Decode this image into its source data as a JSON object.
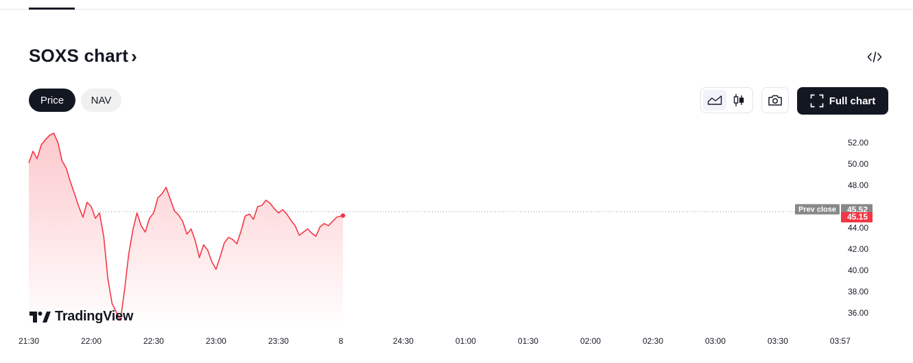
{
  "header": {
    "title": "SOXS chart",
    "title_chevron": "›"
  },
  "tabs": [
    {
      "label": "Price",
      "active": true
    },
    {
      "label": "NAV",
      "active": false
    }
  ],
  "toolbar": {
    "full_chart_label": "Full chart",
    "embed_icon": "code-embed-icon",
    "area_icon": "area-chart-icon",
    "candle_icon": "candlestick-icon",
    "camera_icon": "camera-icon",
    "fullscreen_icon": "fullscreen-icon"
  },
  "logo": {
    "text": "TradingView"
  },
  "colors": {
    "line": "#f23645",
    "area_top": "#fcc9cd",
    "area_bottom": "#ffffff",
    "prev_close_bg": "#888888",
    "price_badge_bg": "#f23645",
    "dark": "#131722"
  },
  "chart_data": {
    "type": "area",
    "title": "",
    "xlabel": "",
    "ylabel": "",
    "y_ticks": [
      "52.00",
      "50.00",
      "48.00",
      "44.00",
      "42.00",
      "40.00",
      "38.00",
      "36.00"
    ],
    "x_ticks": [
      "21:30",
      "22:00",
      "22:30",
      "23:00",
      "23:30",
      "8",
      "24:30",
      "01:00",
      "01:30",
      "02:00",
      "02:30",
      "03:00",
      "03:30",
      "03:57"
    ],
    "ylim": [
      35.0,
      53.1
    ],
    "prev_close": {
      "label": "Prev close",
      "value": "45.52"
    },
    "last_price": "45.15",
    "series": [
      {
        "x": [
          "21:30",
          "21:32",
          "21:34",
          "21:36",
          "21:38",
          "21:40",
          "21:42",
          "21:44",
          "21:46",
          "21:48",
          "21:50",
          "21:52",
          "21:54",
          "21:56",
          "21:58",
          "22:00",
          "22:02",
          "22:04",
          "22:06",
          "22:08",
          "22:10",
          "22:12",
          "22:14",
          "22:16",
          "22:18",
          "22:20",
          "22:22",
          "22:24",
          "22:26",
          "22:28",
          "22:30",
          "22:32",
          "22:34",
          "22:36",
          "22:38",
          "22:40",
          "22:42",
          "22:44",
          "22:46",
          "22:48",
          "22:50",
          "22:52",
          "22:54",
          "22:56",
          "22:58",
          "23:00",
          "23:02",
          "23:04",
          "23:06",
          "23:08",
          "23:10",
          "23:12",
          "23:14",
          "23:16",
          "23:18",
          "23:20",
          "23:22",
          "23:24",
          "23:26",
          "23:28",
          "23:30",
          "23:32",
          "23:34",
          "23:36",
          "23:38",
          "23:40",
          "23:42",
          "23:44",
          "23:46",
          "23:48",
          "23:50",
          "23:52",
          "23:54",
          "23:56",
          "23:58",
          "24:00",
          "24:01"
        ],
        "values": [
          50.1,
          51.2,
          50.5,
          51.8,
          52.3,
          52.7,
          52.9,
          52.0,
          50.3,
          49.6,
          48.3,
          47.2,
          46.0,
          45.0,
          46.4,
          46.0,
          44.9,
          45.4,
          43.2,
          39.2,
          36.9,
          36.1,
          35.3,
          38.1,
          41.5,
          43.8,
          45.4,
          44.2,
          43.6,
          44.9,
          45.4,
          46.8,
          47.2,
          47.8,
          46.7,
          45.6,
          45.2,
          44.6,
          43.4,
          43.9,
          42.8,
          41.2,
          42.4,
          41.9,
          40.8,
          40.1,
          41.3,
          42.6,
          43.1,
          42.9,
          42.5,
          43.7,
          45.1,
          45.3,
          44.8,
          46.0,
          46.1,
          46.6,
          46.3,
          45.8,
          45.4,
          45.7,
          45.3,
          44.7,
          44.2,
          43.3,
          43.6,
          43.9,
          43.5,
          43.2,
          44.1,
          44.4,
          44.2,
          44.6,
          45.0,
          45.1,
          45.15
        ]
      }
    ]
  }
}
